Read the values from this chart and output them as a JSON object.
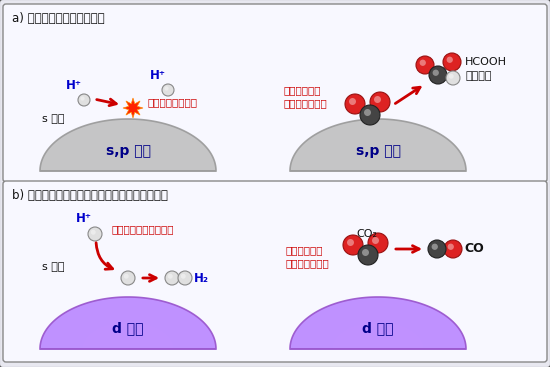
{
  "title_a": "a) インジウム系の金属触媒",
  "title_b": "b) 一般的な金属触媒（白金やパラジウムなど）",
  "label_sp": "s,p 軍道",
  "label_d": "d 軍道",
  "label_s_orbital": "s 軍道",
  "text_no_reaction": "反応が起こらない",
  "text_oxygen_a": "酸素原子側が\n引き寄せられる",
  "text_hcooh": "HCOOH\n（ギ酸）",
  "text_adsorb": "吸着して反応を起こす",
  "text_carbon_b": "炕素原子側が\n引き寄せられる",
  "text_co2": "CO₂",
  "text_h2": "H₂",
  "text_co": "CO",
  "text_hplus": "H⁺",
  "bg_color": "#e8e8f0",
  "panel_color": "#f8f8ff",
  "dome_gray": "#c0c0c0",
  "dome_gray_edge": "#999999",
  "dome_gray_highlight": "#e8e8e8",
  "dome_purple": "#bb88ff",
  "dome_purple_mid": "#cc99ff",
  "dome_purple_light": "#ddbbff",
  "dome_label_color": "#000088",
  "atom_red": "#dd2222",
  "atom_red_light": "#ff6666",
  "atom_dark": "#444444",
  "atom_dark_edge": "#222222",
  "atom_white": "#e0e0e0",
  "atom_white_edge": "#888888",
  "arrow_color": "#cc0000",
  "hplus_color": "#0000cc",
  "explosion_color": "#ff2200",
  "text_red": "#cc0000",
  "text_black": "#111111",
  "outer_edge": "#555555",
  "panel_edge": "#888888"
}
